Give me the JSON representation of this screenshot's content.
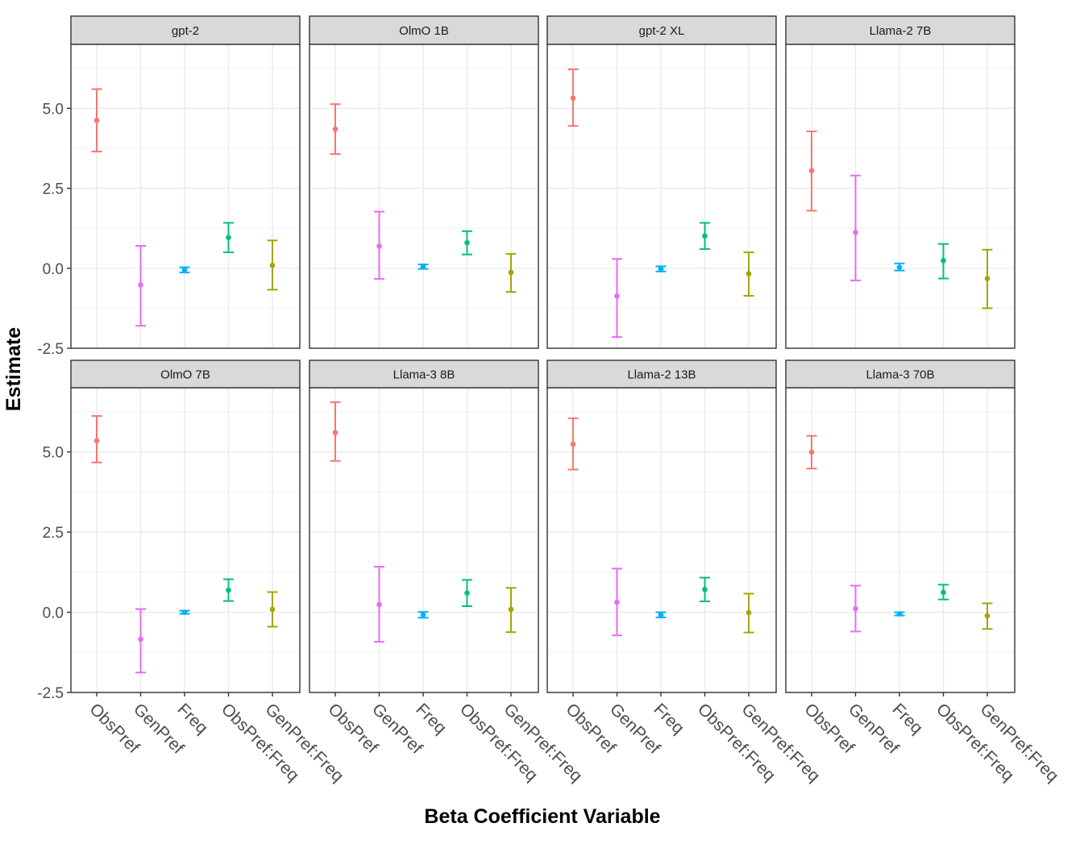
{
  "chart_data": {
    "type": "errorbar",
    "xlabel": "Beta Coefficient Variable",
    "ylabel": "Estimate",
    "categories": [
      "ObsPref",
      "GenPref",
      "Freq",
      "ObsPref:Freq",
      "GenPref:Freq"
    ],
    "category_colors": [
      "#F8766D",
      "#E76BF3",
      "#00B0F6",
      "#00BF7D",
      "#A3A500"
    ],
    "y_ticks": [
      "5.0",
      "2.5",
      "0.0",
      "-2.5"
    ],
    "y_tick_values": [
      5.0,
      2.5,
      0.0,
      -2.5
    ],
    "ylim": [
      -2.5,
      7.0
    ],
    "grid": true,
    "legend": "none",
    "panels": [
      {
        "title": "gpt-2",
        "points": [
          {
            "estimate": 4.62,
            "lower": 3.65,
            "upper": 5.6
          },
          {
            "estimate": -0.52,
            "lower": -1.8,
            "upper": 0.7
          },
          {
            "estimate": -0.05,
            "lower": -0.13,
            "upper": 0.03
          },
          {
            "estimate": 0.96,
            "lower": 0.5,
            "upper": 1.42
          },
          {
            "estimate": 0.09,
            "lower": -0.67,
            "upper": 0.87
          }
        ]
      },
      {
        "title": "OlmO 1B",
        "points": [
          {
            "estimate": 4.35,
            "lower": 3.57,
            "upper": 5.13
          },
          {
            "estimate": 0.69,
            "lower": -0.33,
            "upper": 1.77
          },
          {
            "estimate": 0.05,
            "lower": -0.02,
            "upper": 0.12
          },
          {
            "estimate": 0.8,
            "lower": 0.43,
            "upper": 1.16
          },
          {
            "estimate": -0.13,
            "lower": -0.74,
            "upper": 0.45
          }
        ]
      },
      {
        "title": "gpt-2 XL",
        "points": [
          {
            "estimate": 5.32,
            "lower": 4.45,
            "upper": 6.22
          },
          {
            "estimate": -0.87,
            "lower": -2.15,
            "upper": 0.29
          },
          {
            "estimate": -0.02,
            "lower": -0.1,
            "upper": 0.06
          },
          {
            "estimate": 1.01,
            "lower": 0.6,
            "upper": 1.42
          },
          {
            "estimate": -0.17,
            "lower": -0.86,
            "upper": 0.5
          }
        ]
      },
      {
        "title": "Llama-2 7B",
        "points": [
          {
            "estimate": 3.05,
            "lower": 1.8,
            "upper": 4.28
          },
          {
            "estimate": 1.12,
            "lower": -0.38,
            "upper": 2.9
          },
          {
            "estimate": 0.03,
            "lower": -0.07,
            "upper": 0.15
          },
          {
            "estimate": 0.24,
            "lower": -0.32,
            "upper": 0.76
          },
          {
            "estimate": -0.32,
            "lower": -1.25,
            "upper": 0.58
          }
        ]
      },
      {
        "title": "OlmO 7B",
        "points": [
          {
            "estimate": 5.35,
            "lower": 4.67,
            "upper": 6.12
          },
          {
            "estimate": -0.84,
            "lower": -1.88,
            "upper": 0.1
          },
          {
            "estimate": 0.0,
            "lower": -0.05,
            "upper": 0.05
          },
          {
            "estimate": 0.69,
            "lower": 0.35,
            "upper": 1.03
          },
          {
            "estimate": 0.09,
            "lower": -0.45,
            "upper": 0.63
          }
        ]
      },
      {
        "title": "Llama-3 8B",
        "points": [
          {
            "estimate": 5.6,
            "lower": 4.72,
            "upper": 6.55
          },
          {
            "estimate": 0.24,
            "lower": -0.92,
            "upper": 1.42
          },
          {
            "estimate": -0.08,
            "lower": -0.17,
            "upper": 0.01
          },
          {
            "estimate": 0.6,
            "lower": 0.19,
            "upper": 1.01
          },
          {
            "estimate": 0.09,
            "lower": -0.62,
            "upper": 0.76
          }
        ]
      },
      {
        "title": "Llama-2 13B",
        "points": [
          {
            "estimate": 5.24,
            "lower": 4.45,
            "upper": 6.05
          },
          {
            "estimate": 0.31,
            "lower": -0.72,
            "upper": 1.36
          },
          {
            "estimate": -0.08,
            "lower": -0.16,
            "upper": 0.0
          },
          {
            "estimate": 0.71,
            "lower": 0.34,
            "upper": 1.08
          },
          {
            "estimate": -0.01,
            "lower": -0.63,
            "upper": 0.58
          }
        ]
      },
      {
        "title": "Llama-3 70B",
        "points": [
          {
            "estimate": 4.99,
            "lower": 4.48,
            "upper": 5.5
          },
          {
            "estimate": 0.11,
            "lower": -0.6,
            "upper": 0.83
          },
          {
            "estimate": -0.05,
            "lower": -0.1,
            "upper": 0.0
          },
          {
            "estimate": 0.62,
            "lower": 0.4,
            "upper": 0.86
          },
          {
            "estimate": -0.11,
            "lower": -0.52,
            "upper": 0.28
          }
        ]
      }
    ]
  }
}
